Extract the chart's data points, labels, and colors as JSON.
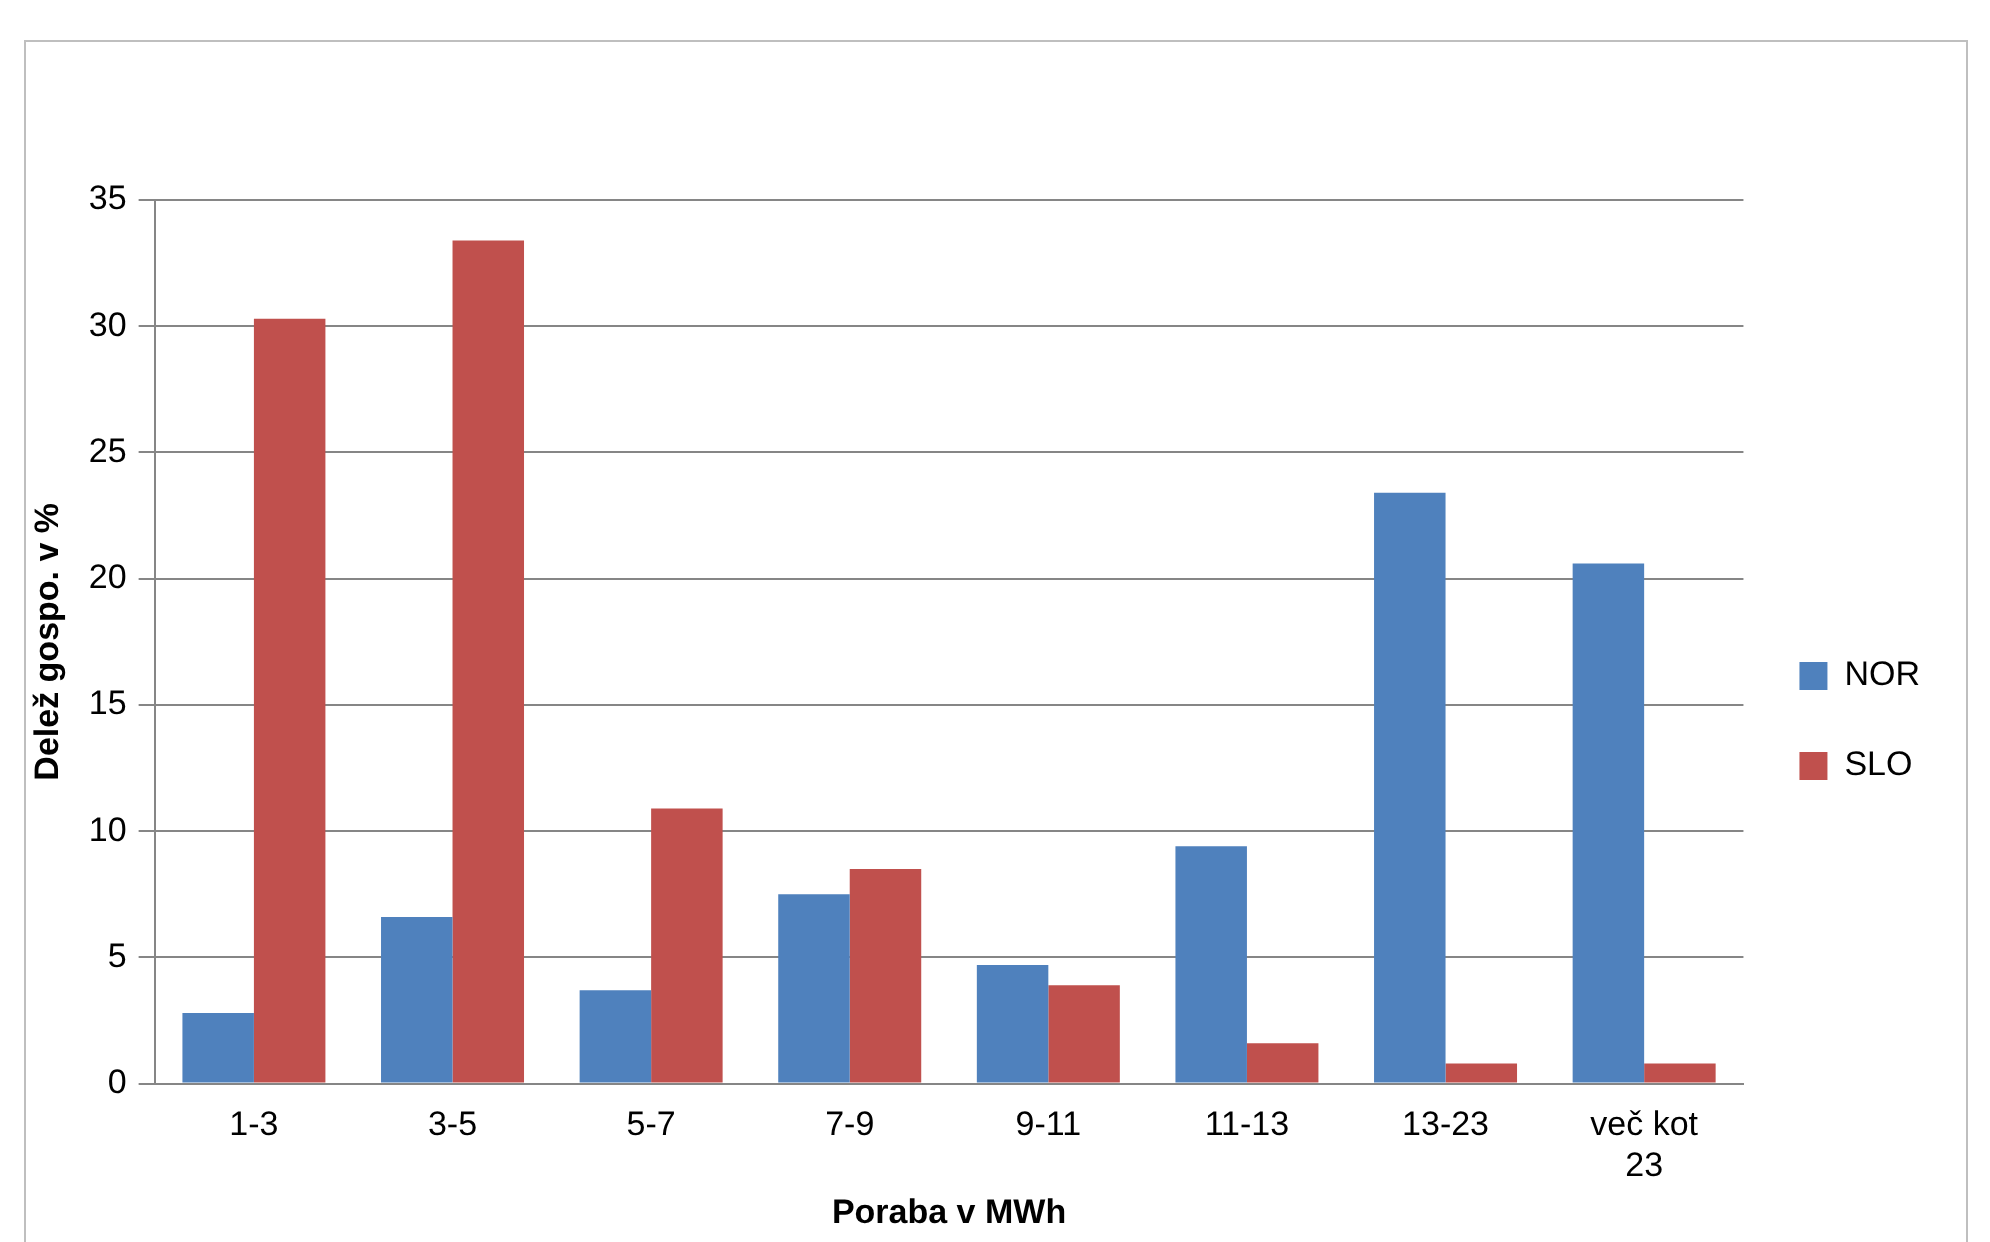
{
  "chart_data": {
    "type": "bar",
    "xlabel": "Poraba v MWh",
    "ylabel": "Delež gospo. v %",
    "categories": [
      "1-3",
      "3-5",
      "5-7",
      "7-9",
      "9-11",
      "11-13",
      "13-23",
      "več kot 23"
    ],
    "series": [
      {
        "name": "NOR",
        "color": "#4f81bd",
        "values": [
          2.8,
          6.6,
          3.7,
          7.5,
          4.7,
          9.4,
          23.4,
          20.6
        ]
      },
      {
        "name": "SLO",
        "color": "#c0504d",
        "values": [
          30.3,
          33.4,
          10.9,
          8.5,
          3.9,
          1.6,
          0.8,
          0.8
        ]
      }
    ],
    "ylim": [
      0,
      35
    ],
    "yticks": [
      0,
      5,
      10,
      15,
      20,
      25,
      30,
      35
    ],
    "grid": "y",
    "legend": "right"
  }
}
